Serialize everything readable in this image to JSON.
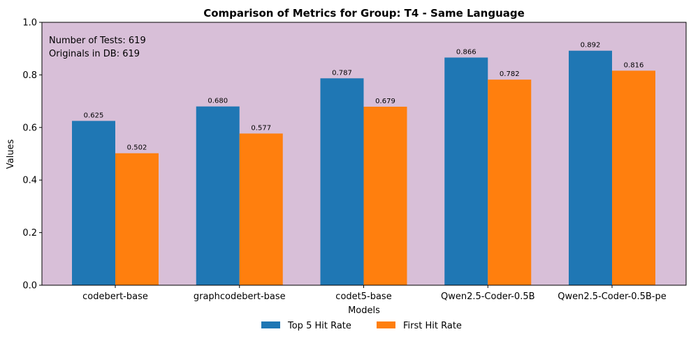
{
  "chart_data": {
    "type": "bar",
    "title": "Comparison of Metrics for Group: T4 - Same Language",
    "xlabel": "Models",
    "ylabel": "Values",
    "ylim": [
      0,
      1.0
    ],
    "yticks": [
      "0.0",
      "0.2",
      "0.4",
      "0.6",
      "0.8",
      "1.0"
    ],
    "categories": [
      "codebert-base",
      "graphcodebert-base",
      "codet5-base",
      "Qwen2.5-Coder-0.5B",
      "Qwen2.5-Coder-0.5B-pe"
    ],
    "series": [
      {
        "name": "Top 5 Hit Rate",
        "color": "#1f77b4",
        "values": [
          0.625,
          0.68,
          0.787,
          0.866,
          0.892
        ],
        "labels": [
          "0.625",
          "0.680",
          "0.787",
          "0.866",
          "0.892"
        ]
      },
      {
        "name": "First Hit Rate",
        "color": "#ff7f0e",
        "values": [
          0.502,
          0.577,
          0.679,
          0.782,
          0.816
        ],
        "labels": [
          "0.502",
          "0.577",
          "0.679",
          "0.782",
          "0.816"
        ]
      }
    ],
    "annotations": [
      "Number of Tests: 619",
      "Originals in DB: 619"
    ],
    "background_color": "#d8bfd8",
    "grid": false,
    "legend_position": "bottom-center"
  }
}
